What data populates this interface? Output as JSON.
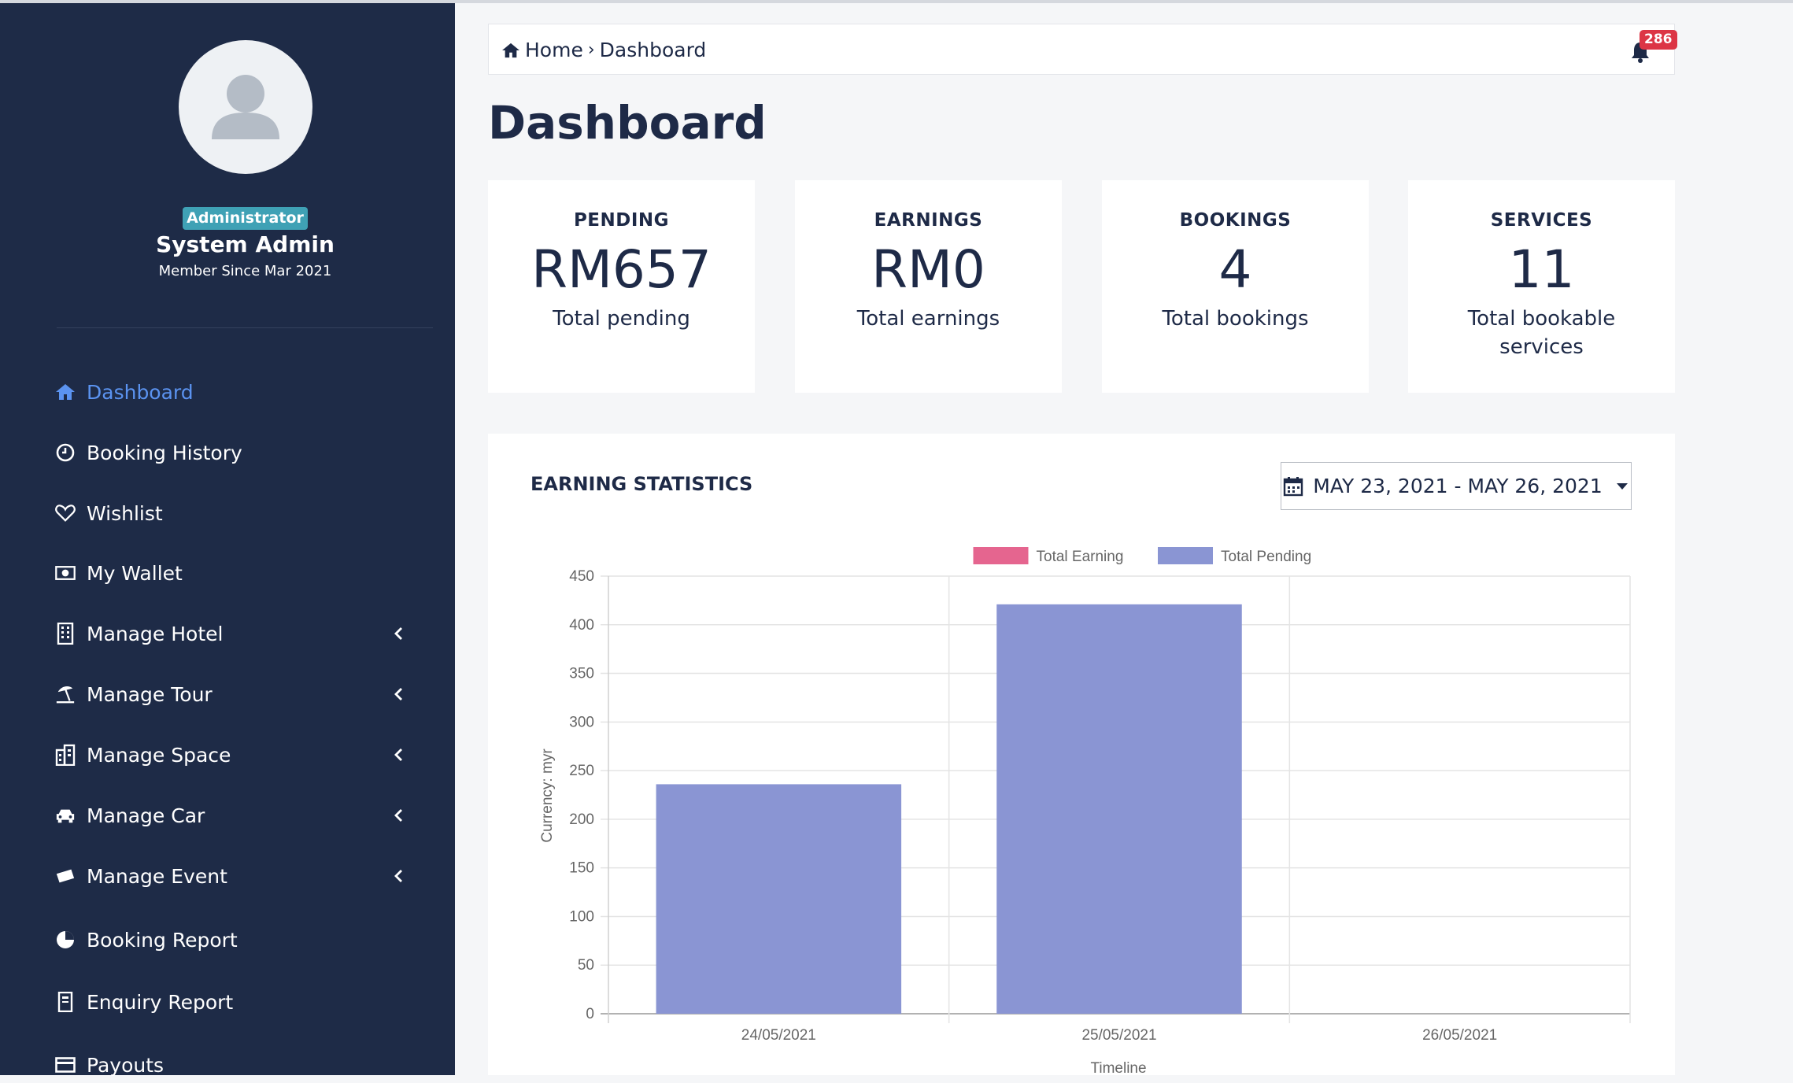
{
  "sidebar": {
    "role_badge": "Administrator",
    "user_name": "System Admin",
    "member_since": "Member Since Mar 2021",
    "items": [
      {
        "label": "Dashboard"
      },
      {
        "label": "Booking History"
      },
      {
        "label": "Wishlist"
      },
      {
        "label": "My Wallet"
      },
      {
        "label": "Manage Hotel"
      },
      {
        "label": "Manage Tour"
      },
      {
        "label": "Manage Space"
      },
      {
        "label": "Manage Car"
      },
      {
        "label": "Manage Event"
      },
      {
        "label": "Booking Report"
      },
      {
        "label": "Enquiry Report"
      },
      {
        "label": "Payouts"
      }
    ]
  },
  "breadcrumb": {
    "home": "Home",
    "current": "Dashboard",
    "notification_count": "286"
  },
  "page_title": "Dashboard",
  "stats": [
    {
      "label": "PENDING",
      "value": "RM657",
      "desc": "Total pending"
    },
    {
      "label": "EARNINGS",
      "value": "RM0",
      "desc": "Total earnings"
    },
    {
      "label": "BOOKINGS",
      "value": "4",
      "desc": "Total bookings"
    },
    {
      "label": "SERVICES",
      "value": "11",
      "desc": "Total bookable services"
    }
  ],
  "earning_statistics": {
    "title": "EARNING STATISTICS",
    "date_range": "MAY 23, 2021 - MAY 26, 2021"
  },
  "colors": {
    "sidebar_bg": "#1e2b47",
    "active_nav": "#5b93f0",
    "earning": "#e5658f",
    "pending": "#8a95d3",
    "badge_red": "#dc3545",
    "badge_teal": "#3fa1b5"
  },
  "chart_data": {
    "type": "bar",
    "categories": [
      "24/05/2021",
      "25/05/2021",
      "26/05/2021"
    ],
    "series": [
      {
        "name": "Total Earning",
        "values": [
          0,
          0,
          0
        ],
        "color": "#e5658f"
      },
      {
        "name": "Total Pending",
        "values": [
          236,
          421,
          0
        ],
        "color": "#8a95d3"
      }
    ],
    "xlabel": "Timeline",
    "ylabel": "Currency: myr",
    "ylim": [
      0,
      450
    ],
    "yticks": [
      0,
      50,
      100,
      150,
      200,
      250,
      300,
      350,
      400,
      450
    ],
    "grid": true,
    "legend": "top-center"
  }
}
